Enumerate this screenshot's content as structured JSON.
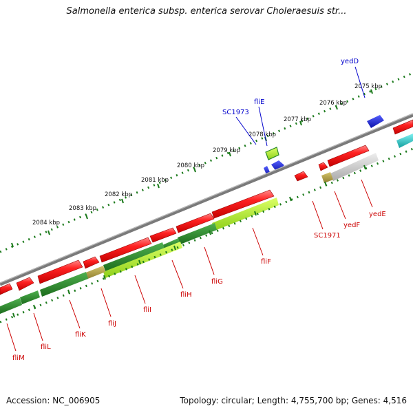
{
  "title": "Salmonella enterica subsp. enterica serovar Choleraesuis str...",
  "footer": {
    "accession": "Accession: NC_006905",
    "summary": "Topology: circular; Length: 4,755,700 bp; Genes: 4,516"
  },
  "colors": {
    "backbone": "#7a7a7a",
    "forward_gene": "#ee1111",
    "reverse_gene": "#1a22dd",
    "cds_dark_green": "#2a8a2a",
    "cds_light_green": "#b4ee33",
    "tick_green": "#1b7a1b",
    "gray_feature": "#bdbdbd",
    "olive_feature": "#b5a24a",
    "cyan_feature": "#22cccc",
    "label_red": "#cc0000",
    "label_blue": "#0000cc"
  },
  "scale_labels": [
    "2075 kbp",
    "2076 kbp",
    "2077 kbp",
    "2078 kbp",
    "2079 kbp",
    "2080 kbp",
    "2081 kbp",
    "2082 kbp",
    "2083 kbp",
    "2084 kbp"
  ],
  "gene_labels_reverse": [
    "fliM",
    "fliL",
    "fliK",
    "fliJ",
    "fliI",
    "fliH",
    "fliG",
    "fliF",
    "SC1971",
    "yedF",
    "yedE"
  ],
  "gene_labels_forward": [
    "SC1973",
    "fliE",
    "yedD"
  ]
}
